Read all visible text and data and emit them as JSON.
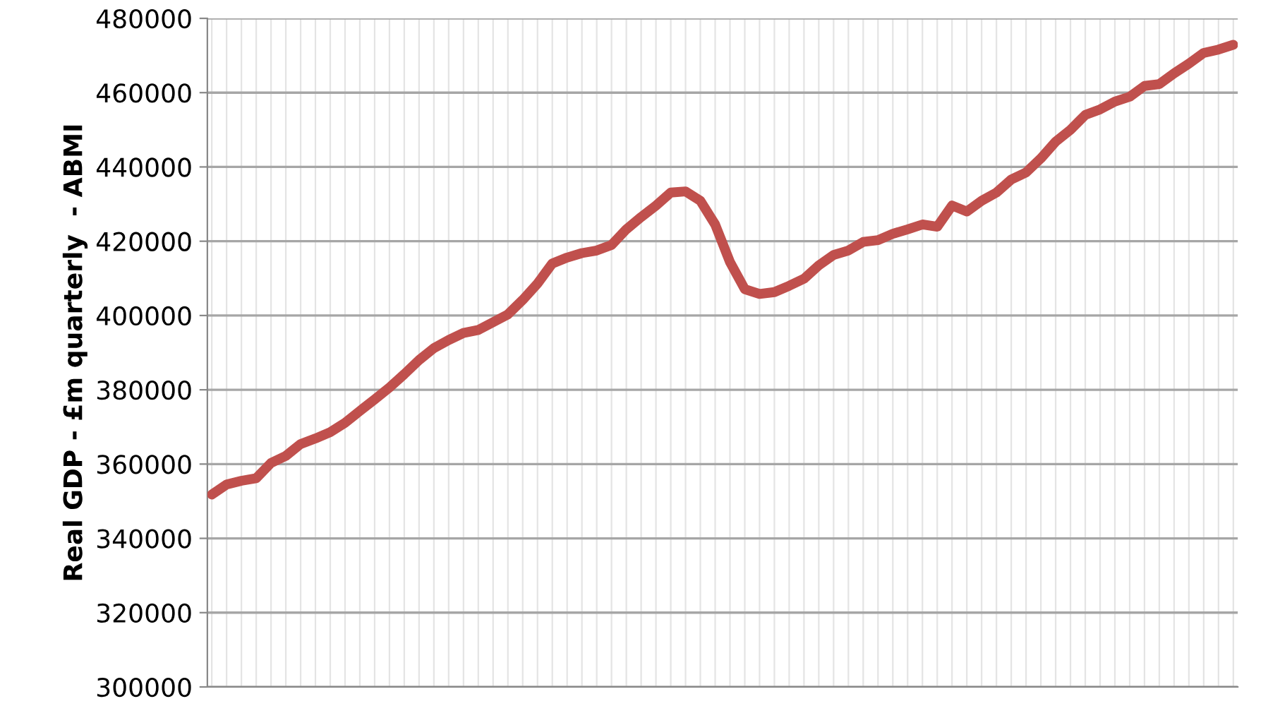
{
  "chart_data": {
    "type": "line",
    "ylabel": "Real GDP - £m quarterly  - ABMI",
    "categories": [
      null,
      null,
      null,
      null,
      null,
      null,
      null,
      null,
      null,
      null,
      null,
      null,
      null,
      null,
      null,
      null,
      null,
      null,
      null,
      null,
      null,
      null,
      null,
      null,
      null,
      null,
      null,
      null,
      null,
      null,
      null,
      null,
      null,
      null,
      null,
      null,
      null,
      null,
      null,
      null,
      null,
      null,
      null,
      null,
      null,
      null,
      null,
      null,
      null,
      null,
      null,
      null,
      null,
      null,
      null,
      null,
      null,
      null,
      null,
      null,
      null,
      null,
      null,
      null,
      null,
      null,
      null,
      null,
      null,
      null
    ],
    "series": [
      {
        "color": "#c0504d",
        "values": [
          351800,
          354500,
          355500,
          356200,
          360300,
          362200,
          365400,
          366900,
          368600,
          371100,
          374300,
          377400,
          380600,
          384200,
          388000,
          391200,
          393400,
          395300,
          396100,
          398200,
          400300,
          404200,
          408600,
          414000,
          415600,
          416800,
          417500,
          419000,
          423200,
          426500,
          429600,
          433100,
          433400,
          430900,
          424500,
          414400,
          407100,
          405800,
          406300,
          408000,
          409900,
          413500,
          416300,
          417500,
          419800,
          420300,
          422000,
          423200,
          424500,
          423900,
          429600,
          428000,
          430900,
          433100,
          436600,
          438500,
          442300,
          446800,
          450000,
          454000,
          455500,
          457600,
          458900,
          461800,
          462300,
          465200,
          467800,
          470700,
          471600,
          472900
        ]
      }
    ],
    "ylim": [
      300000,
      480000
    ],
    "yticks": [
      300000,
      320000,
      340000,
      360000,
      380000,
      400000,
      420000,
      440000,
      460000,
      480000
    ],
    "grid": true,
    "tick_labels": "y",
    "marker": "none",
    "line_style": "solid"
  }
}
